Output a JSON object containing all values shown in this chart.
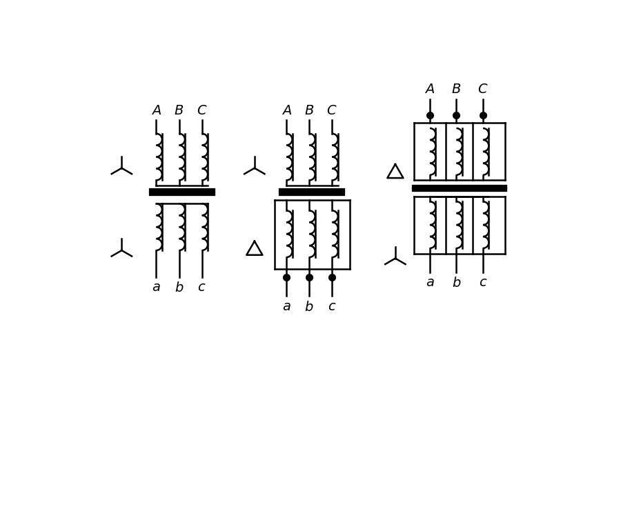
{
  "bg_color": "#ffffff",
  "line_color": "#000000",
  "lw": 1.8,
  "lw_thick": 4.5,
  "figsize": [
    9.0,
    7.54
  ],
  "dpi": 100
}
